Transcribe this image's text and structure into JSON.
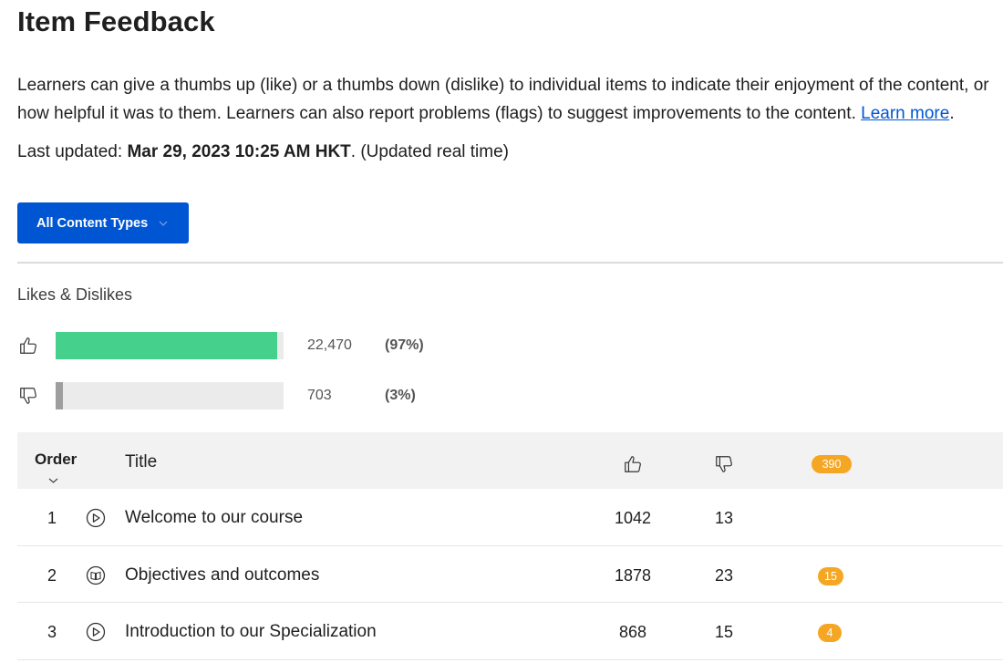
{
  "page": {
    "title": "Item Feedback",
    "description_text": "Learners can give a thumbs up (like) or a thumbs down (dislike) to individual items to indicate their enjoyment of the content, or how helpful it was to them. Learners can also report problems (flags) to suggest improvements to the content.",
    "learn_more_label": "Learn more",
    "learn_more_suffix": ".",
    "last_updated_label": "Last updated:",
    "last_updated_value": "Mar 29, 2023 10:25 AM HKT",
    "last_updated_suffix": ". (Updated real time)"
  },
  "filter": {
    "label": "All Content Types",
    "icon": "chevron-down-icon"
  },
  "summary": {
    "label": "Likes & Dislikes",
    "likes": {
      "icon": "thumbs-up-icon",
      "count": "22,470",
      "percent": "(97%)",
      "fraction": 0.97,
      "color": "#45d08b"
    },
    "dislikes": {
      "icon": "thumbs-down-icon",
      "count": "703",
      "percent": "(3%)",
      "fraction": 0.03,
      "color": "#9e9e9e"
    }
  },
  "table": {
    "headers": {
      "order": "Order",
      "title": "Title",
      "likes_icon": "thumbs-up-icon",
      "dislikes_icon": "thumbs-down-icon",
      "flags_total": "390"
    },
    "rows": [
      {
        "order": "1",
        "type_icon": "play-circle-icon",
        "title": "Welcome to our course",
        "likes": "1042",
        "dislikes": "13",
        "flags": ""
      },
      {
        "order": "2",
        "type_icon": "book-circle-icon",
        "title": "Objectives and outcomes",
        "likes": "1878",
        "dislikes": "23",
        "flags": "15"
      },
      {
        "order": "3",
        "type_icon": "play-circle-icon",
        "title": "Introduction to our Specialization",
        "likes": "868",
        "dislikes": "15",
        "flags": "4"
      }
    ]
  },
  "colors": {
    "primary": "#0056d2",
    "flag_badge": "#f5a623",
    "like_bar": "#45d08b"
  }
}
